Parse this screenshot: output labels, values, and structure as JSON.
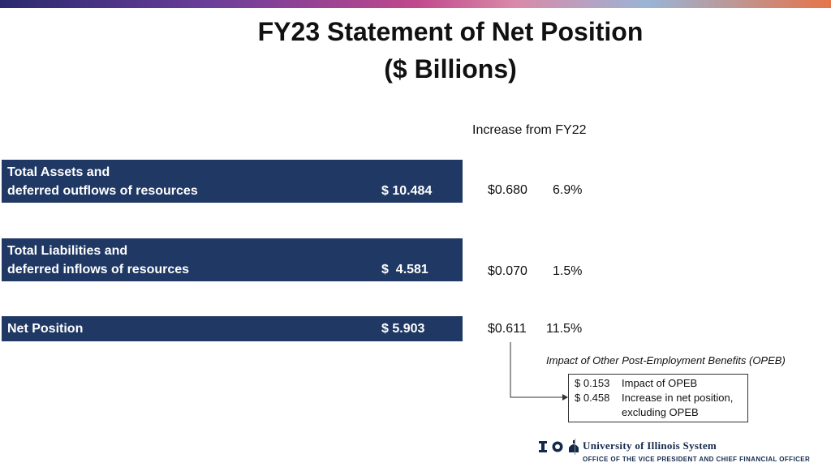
{
  "title": {
    "line1": "FY23 Statement of Net Position",
    "line2": "($ Billions)"
  },
  "increase_header": "Increase from FY22",
  "rows": [
    {
      "label_line1": "Total Assets and",
      "label_line2": "deferred outflows of resources",
      "value": "$ 10.484",
      "inc_amount": "$0.680",
      "inc_pct": "6.9%"
    },
    {
      "label_line1": "Total Liabilities and",
      "label_line2": "deferred inflows of resources",
      "value": "$  4.581",
      "inc_amount": "$0.070",
      "inc_pct": "1.5%"
    },
    {
      "label_line1": "Net Position",
      "value": "$ 5.903",
      "inc_amount": "$0.611",
      "inc_pct": "11.5%"
    }
  ],
  "opeb": {
    "title": "Impact of Other Post-Employment Benefits (OPEB)",
    "line1_amount": "$ 0.153",
    "line1_text": "Impact of OPEB",
    "line2_amount": "$ 0.458",
    "line2_text": "Increase in net position,",
    "line3_text": "excluding OPEB"
  },
  "footer": {
    "logo_text": "University of Illinois System",
    "subtitle": "OFFICE OF THE VICE PRESIDENT AND CHIEF FINANCIAL OFFICER"
  },
  "colors": {
    "row_fill": "#1f3864",
    "brand_navy": "#13294b",
    "brand_orange": "#e84a27"
  }
}
